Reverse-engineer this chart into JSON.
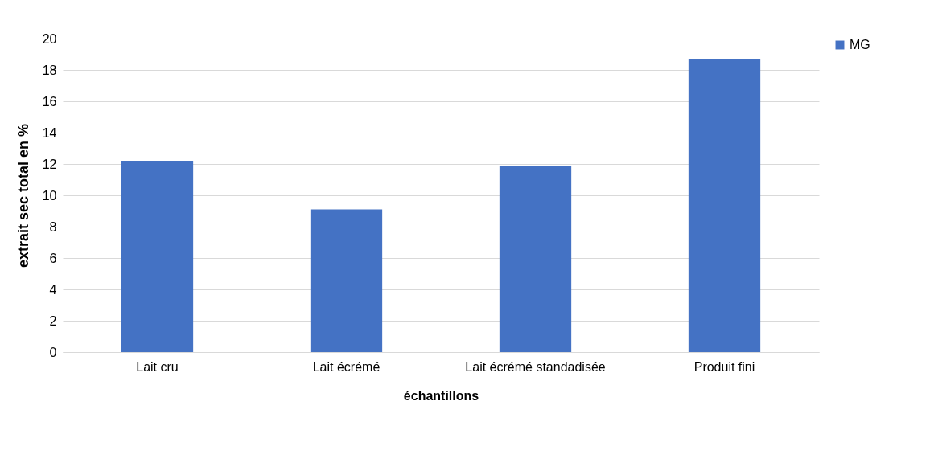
{
  "chart_data": {
    "type": "bar",
    "xlabel": "échantillons",
    "ylabel": "extrait sec total en %",
    "categories": [
      "Lait cru",
      "Lait écrémé",
      "Lait écrémé standadisée",
      "Produit fini"
    ],
    "series": [
      {
        "name": "MG",
        "color": "#4472c4",
        "values": [
          12.2,
          9.1,
          11.9,
          18.7
        ]
      }
    ],
    "ylim": [
      0,
      20
    ],
    "yticks": [
      0,
      2,
      4,
      6,
      8,
      10,
      12,
      14,
      16,
      18,
      20
    ],
    "grid": "y",
    "legend": "right"
  }
}
